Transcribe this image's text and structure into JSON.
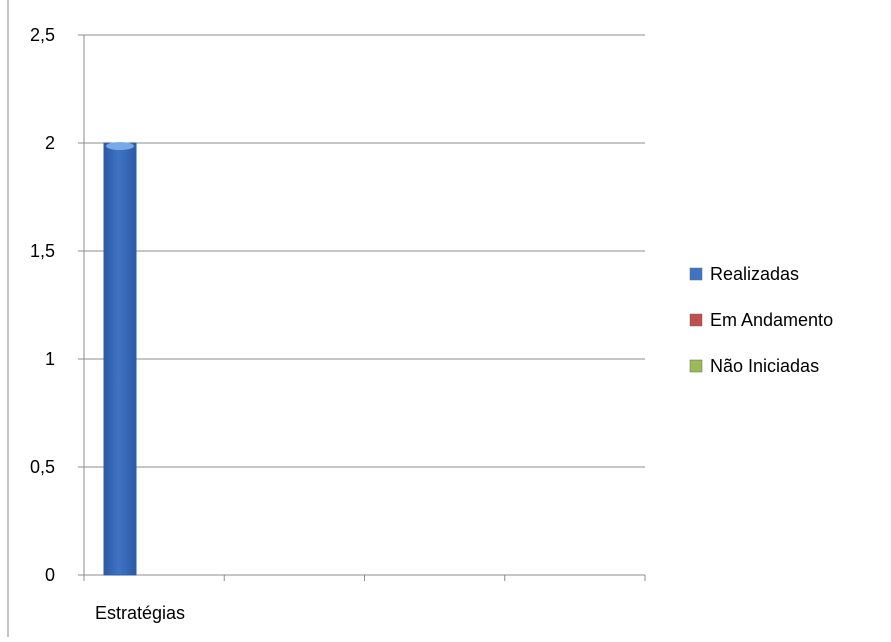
{
  "chart_data": {
    "type": "bar",
    "title": "",
    "xlabel": "",
    "ylabel": "",
    "categories": [
      "Estratégias"
    ],
    "series": [
      {
        "name": "Realizadas",
        "values": [
          2
        ],
        "color": "#3f74c2"
      },
      {
        "name": "Em Andamento",
        "values": [
          0
        ],
        "color": "#c0504d"
      },
      {
        "name": "Não Iniciadas",
        "values": [
          0
        ],
        "color": "#9bbb59"
      }
    ],
    "ylim": [
      0,
      2.5
    ],
    "yticks": [
      "0",
      "0,5",
      "1",
      "1,5",
      "2",
      "2,5"
    ],
    "grid": true,
    "legend_position": "right"
  }
}
